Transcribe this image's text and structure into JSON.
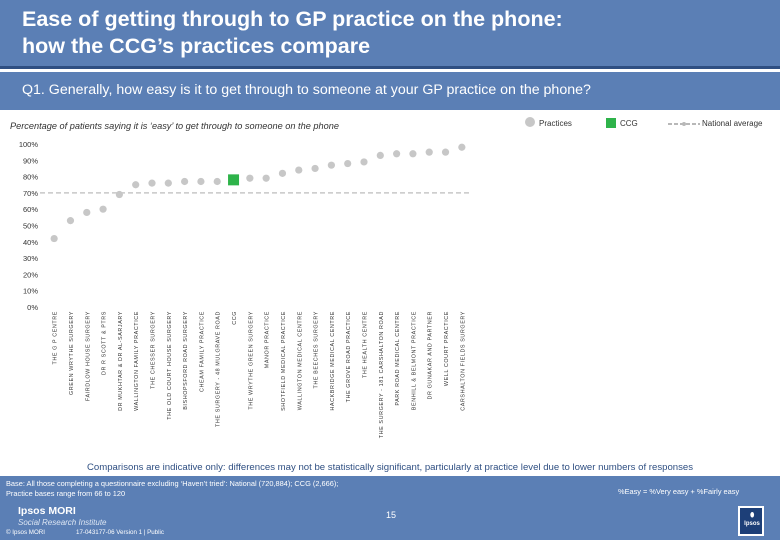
{
  "header": {
    "title_line1": "Ease of getting through to GP practice on the phone:",
    "title_line2": "how the CCG’s practices compare",
    "question": "Q1. Generally, how easy is it to get through to someone at your GP practice on the phone?"
  },
  "legend": {
    "practices": "Practices",
    "ccg": "CCG",
    "national": "National average"
  },
  "colors": {
    "band": "#5b7fb5",
    "practice_dot": "#c7c7c7",
    "ccg": "#2eb34a",
    "national_line": "#c8c8c8"
  },
  "chart_data": {
    "type": "scatter",
    "title": "Percentage of patients saying it is ‘easy’ to get through to someone on the phone",
    "xlabel": "",
    "ylabel": "",
    "ylim": [
      0,
      100
    ],
    "yticks": [
      "0%",
      "10%",
      "20%",
      "30%",
      "40%",
      "50%",
      "60%",
      "70%",
      "80%",
      "90%",
      "100%"
    ],
    "national_average": 70,
    "categories": [
      "THE G P CENTRE",
      "GREEN WRYTHE SURGERY",
      "FAIRDLOW HOUSE SURGERY",
      "DR R SCOTT & PTRS",
      "DR MUKHTAR & DR AL-SARJARY",
      "WALLINGTON FAMILY PRACTICE",
      "THE CHESSER SURGERY",
      "THE OLD COURT HOUSE SURGERY",
      "BISHOPSFORD ROAD SURGERY",
      "CHEAM FAMILY PRACTICE",
      "THE SURGERY - 48 MULGRAVE ROAD",
      "CCG",
      "THE WRYTHE GREEN SURGERY",
      "MANOR PRACTICE",
      "SHOTFIELD MEDICAL PRACTICE",
      "WALLINGTON MEDICAL CENTRE",
      "THE BEECHES SURGERY",
      "HACKBRIDGE MEDICAL CENTRE",
      "THE GROVE ROAD PRACTICE",
      "THE HEALTH CENTRE",
      "THE SURGERY - 181 CARSHALTON ROAD",
      "PARK ROAD MEDICAL CENTRE",
      "BENHILL & BELMONT PRACTICE",
      "DR GUNAKAR AND PARTNER",
      "WELL COURT PRACTICE",
      "CARSHALTON FIELDS SURGERY"
    ],
    "values": [
      42,
      53,
      58,
      60,
      69,
      75,
      76,
      76,
      77,
      77,
      77,
      78,
      79,
      79,
      82,
      84,
      85,
      87,
      88,
      89,
      93,
      94,
      94,
      95,
      95,
      98
    ],
    "ccg_index": 11
  },
  "footer": {
    "caveat": "Comparisons are indicative only: differences may not be statistically significant, particularly at practice level due to lower numbers of responses",
    "base_line1": "Base: All those completing a questionnaire excluding ‘Haven’t tried’: National (720,884); CCG (2,666);",
    "base_line2": "Practice bases range from 66 to 120",
    "key": "%Easy = %Very easy + %Fairly easy",
    "brand": "Ipsos MORI",
    "brand_sub": "Social Research Institute",
    "copyright": "© Ipsos MORI",
    "version": "17-043177-06 Version 1 | Public",
    "page": "15",
    "logo_text": "Ipsos"
  }
}
